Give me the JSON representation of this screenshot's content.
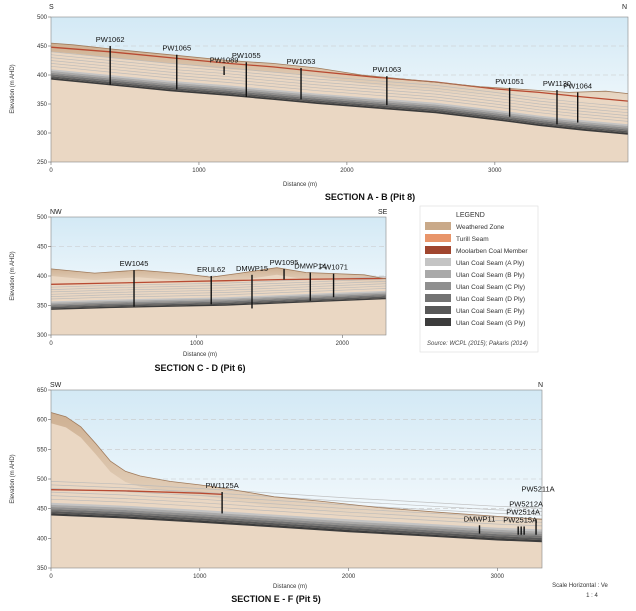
{
  "sections": [
    {
      "id": "ab",
      "title": "SECTION A - B   (Pit 8)",
      "dir_left": "S",
      "dir_right": "N",
      "xlabel": "Distance (m)",
      "ylabel": "Elevation (m AHD)",
      "xlim": [
        0,
        3900
      ],
      "ylim": [
        250,
        500
      ],
      "xticks": [
        "0",
        "1000",
        "2000",
        "3000"
      ],
      "yticks": [
        "250",
        "300",
        "350",
        "400",
        "450",
        "500"
      ],
      "surface": [
        [
          0,
          455
        ],
        [
          150,
          452
        ],
        [
          400,
          445
        ],
        [
          800,
          435
        ],
        [
          1200,
          425
        ],
        [
          1500,
          420
        ],
        [
          1800,
          412
        ],
        [
          2100,
          400
        ],
        [
          2500,
          390
        ],
        [
          2900,
          380
        ],
        [
          3200,
          375
        ],
        [
          3500,
          370
        ],
        [
          3750,
          372
        ],
        [
          3900,
          368
        ]
      ],
      "seam_top": [
        [
          0,
          410
        ],
        [
          400,
          400
        ],
        [
          800,
          390
        ],
        [
          1200,
          382
        ],
        [
          1500,
          375
        ],
        [
          1800,
          368
        ],
        [
          2200,
          360
        ],
        [
          2600,
          352
        ],
        [
          3000,
          340
        ],
        [
          3300,
          330
        ],
        [
          3600,
          322
        ],
        [
          3900,
          315
        ]
      ],
      "red_seam": [
        [
          0,
          448
        ],
        [
          400,
          440
        ],
        [
          800,
          430
        ],
        [
          1200,
          420
        ],
        [
          1500,
          414
        ],
        [
          1800,
          406
        ],
        [
          2200,
          396
        ],
        [
          2600,
          388
        ],
        [
          3000,
          376
        ],
        [
          3300,
          370
        ],
        [
          3600,
          362
        ],
        [
          3900,
          355
        ]
      ],
      "boreholes": [
        {
          "name": "PW1062",
          "x": 400,
          "top": 450,
          "bottom": 383
        },
        {
          "name": "PW1065",
          "x": 850,
          "top": 435,
          "bottom": 375
        },
        {
          "name": "PW1089",
          "x": 1170,
          "top": 415,
          "bottom": 400
        },
        {
          "name": "PW1055",
          "x": 1320,
          "top": 422,
          "bottom": 362
        },
        {
          "name": "PW1053",
          "x": 1690,
          "top": 412,
          "bottom": 358
        },
        {
          "name": "PW1063",
          "x": 2270,
          "top": 398,
          "bottom": 348
        },
        {
          "name": "PW1051",
          "x": 3100,
          "top": 378,
          "bottom": 328
        },
        {
          "name": "PW1130",
          "x": 3420,
          "top": 374,
          "bottom": 315
        },
        {
          "name": "PW1064",
          "x": 3560,
          "top": 370,
          "bottom": 318
        }
      ]
    },
    {
      "id": "cd",
      "title": "SECTION C - D  (Pit 6)",
      "dir_left": "NW",
      "dir_right": "SE",
      "xlabel": "Distance (m)",
      "ylabel": "Elevation (m AHD)",
      "xlim": [
        0,
        2300
      ],
      "ylim": [
        300,
        500
      ],
      "xticks": [
        "0",
        "1000",
        "2000"
      ],
      "yticks": [
        "300",
        "350",
        "400",
        "450",
        "500"
      ],
      "surface": [
        [
          0,
          412
        ],
        [
          300,
          405
        ],
        [
          600,
          410
        ],
        [
          900,
          404
        ],
        [
          1100,
          398
        ],
        [
          1300,
          405
        ],
        [
          1550,
          414
        ],
        [
          1750,
          406
        ],
        [
          1950,
          404
        ],
        [
          2150,
          402
        ],
        [
          2300,
          395
        ]
      ],
      "seam_top": [
        [
          0,
          357
        ],
        [
          400,
          360
        ],
        [
          800,
          362
        ],
        [
          1200,
          364
        ],
        [
          1600,
          368
        ],
        [
          2000,
          372
        ],
        [
          2300,
          375
        ]
      ],
      "red_seam": [
        [
          0,
          386
        ],
        [
          400,
          388
        ],
        [
          800,
          390
        ],
        [
          1200,
          392
        ],
        [
          1600,
          394
        ],
        [
          2000,
          395
        ],
        [
          2300,
          396
        ]
      ],
      "boreholes": [
        {
          "name": "EW1045",
          "x": 570,
          "top": 410,
          "bottom": 348
        },
        {
          "name": "ERUL62",
          "x": 1100,
          "top": 400,
          "bottom": 352
        },
        {
          "name": "DMWP15",
          "x": 1380,
          "top": 402,
          "bottom": 345
        },
        {
          "name": "PW1095",
          "x": 1600,
          "top": 412,
          "bottom": 394
        },
        {
          "name": "DMWP14",
          "x": 1780,
          "top": 406,
          "bottom": 358
        },
        {
          "name": "PW1071",
          "x": 1940,
          "top": 404,
          "bottom": 364
        }
      ]
    },
    {
      "id": "ef",
      "title": "SECTION E - F  (Pit 5)",
      "dir_left": "SW",
      "dir_right": "N",
      "xlabel": "Distance (m)",
      "ylabel": "Elevation (m AHD)",
      "xlim": [
        0,
        3300
      ],
      "ylim": [
        350,
        650
      ],
      "xticks": [
        "0",
        "1000",
        "2000",
        "3000"
      ],
      "yticks": [
        "350",
        "400",
        "450",
        "500",
        "550",
        "600",
        "650"
      ],
      "surface": [
        [
          0,
          612
        ],
        [
          100,
          605
        ],
        [
          200,
          588
        ],
        [
          300,
          560
        ],
        [
          400,
          530
        ],
        [
          500,
          513
        ],
        [
          600,
          505
        ],
        [
          800,
          496
        ],
        [
          1000,
          490
        ],
        [
          1200,
          483
        ],
        [
          1500,
          470
        ],
        [
          1800,
          463
        ],
        [
          2200,
          452
        ],
        [
          2600,
          444
        ],
        [
          3000,
          437
        ],
        [
          3300,
          432
        ]
      ],
      "seam_top": [
        [
          0,
          460
        ],
        [
          500,
          455
        ],
        [
          1000,
          448
        ],
        [
          1500,
          440
        ],
        [
          2000,
          432
        ],
        [
          2500,
          425
        ],
        [
          3000,
          418
        ],
        [
          3300,
          415
        ]
      ],
      "red_seam": [
        [
          0,
          482
        ],
        [
          500,
          480
        ],
        [
          1000,
          476
        ],
        [
          1150,
          474
        ]
      ],
      "boreholes": [
        {
          "name": "PW1125A",
          "x": 1150,
          "top": 478,
          "bottom": 442
        },
        {
          "name": "DMWP11",
          "x": 2880,
          "top": 422,
          "bottom": 408
        },
        {
          "name": "PW2515A",
          "x": 3140,
          "top": 420,
          "bottom": 406
        },
        {
          "name": "PW2514A",
          "x": 3160,
          "top": 420,
          "bottom": 406
        },
        {
          "name": "PW5212A",
          "x": 3180,
          "top": 420,
          "bottom": 406
        },
        {
          "name": "PW5211A",
          "x": 3260,
          "top": 432,
          "bottom": 406
        }
      ]
    }
  ],
  "legend": {
    "title": "LEGEND",
    "items": [
      {
        "label": "Weathered Zone",
        "color": "#c9a989"
      },
      {
        "label": "Turill Seam",
        "color": "#e8956a"
      },
      {
        "label": "Moolarben Coal Member",
        "color": "#a0452e"
      },
      {
        "label": "Ulan Coal Seam (A Ply)",
        "color": "#c4c4c4"
      },
      {
        "label": "Ulan Coal Seam (B Ply)",
        "color": "#a9a9a9"
      },
      {
        "label": "Ulan Coal Seam (C Ply)",
        "color": "#8f8f8f"
      },
      {
        "label": "Ulan Coal Seam (D Ply)",
        "color": "#737373"
      },
      {
        "label": "Ulan Coal Seam (E Ply)",
        "color": "#585858"
      },
      {
        "label": "Ulan Coal Seam (G Ply)",
        "color": "#3c3c3c"
      }
    ],
    "source": "Source:  WCPL (2015); Pakaris (2014)"
  },
  "scale": {
    "line1": "Scale Horizontal : Ve",
    "line2": "1 : 4"
  },
  "colors": {
    "ground": "#e9d5c0",
    "sky_top": "#d6ecf6",
    "sky_bottom": "#ffffff",
    "seam_dark": "#555555",
    "red": "#b84a32"
  }
}
